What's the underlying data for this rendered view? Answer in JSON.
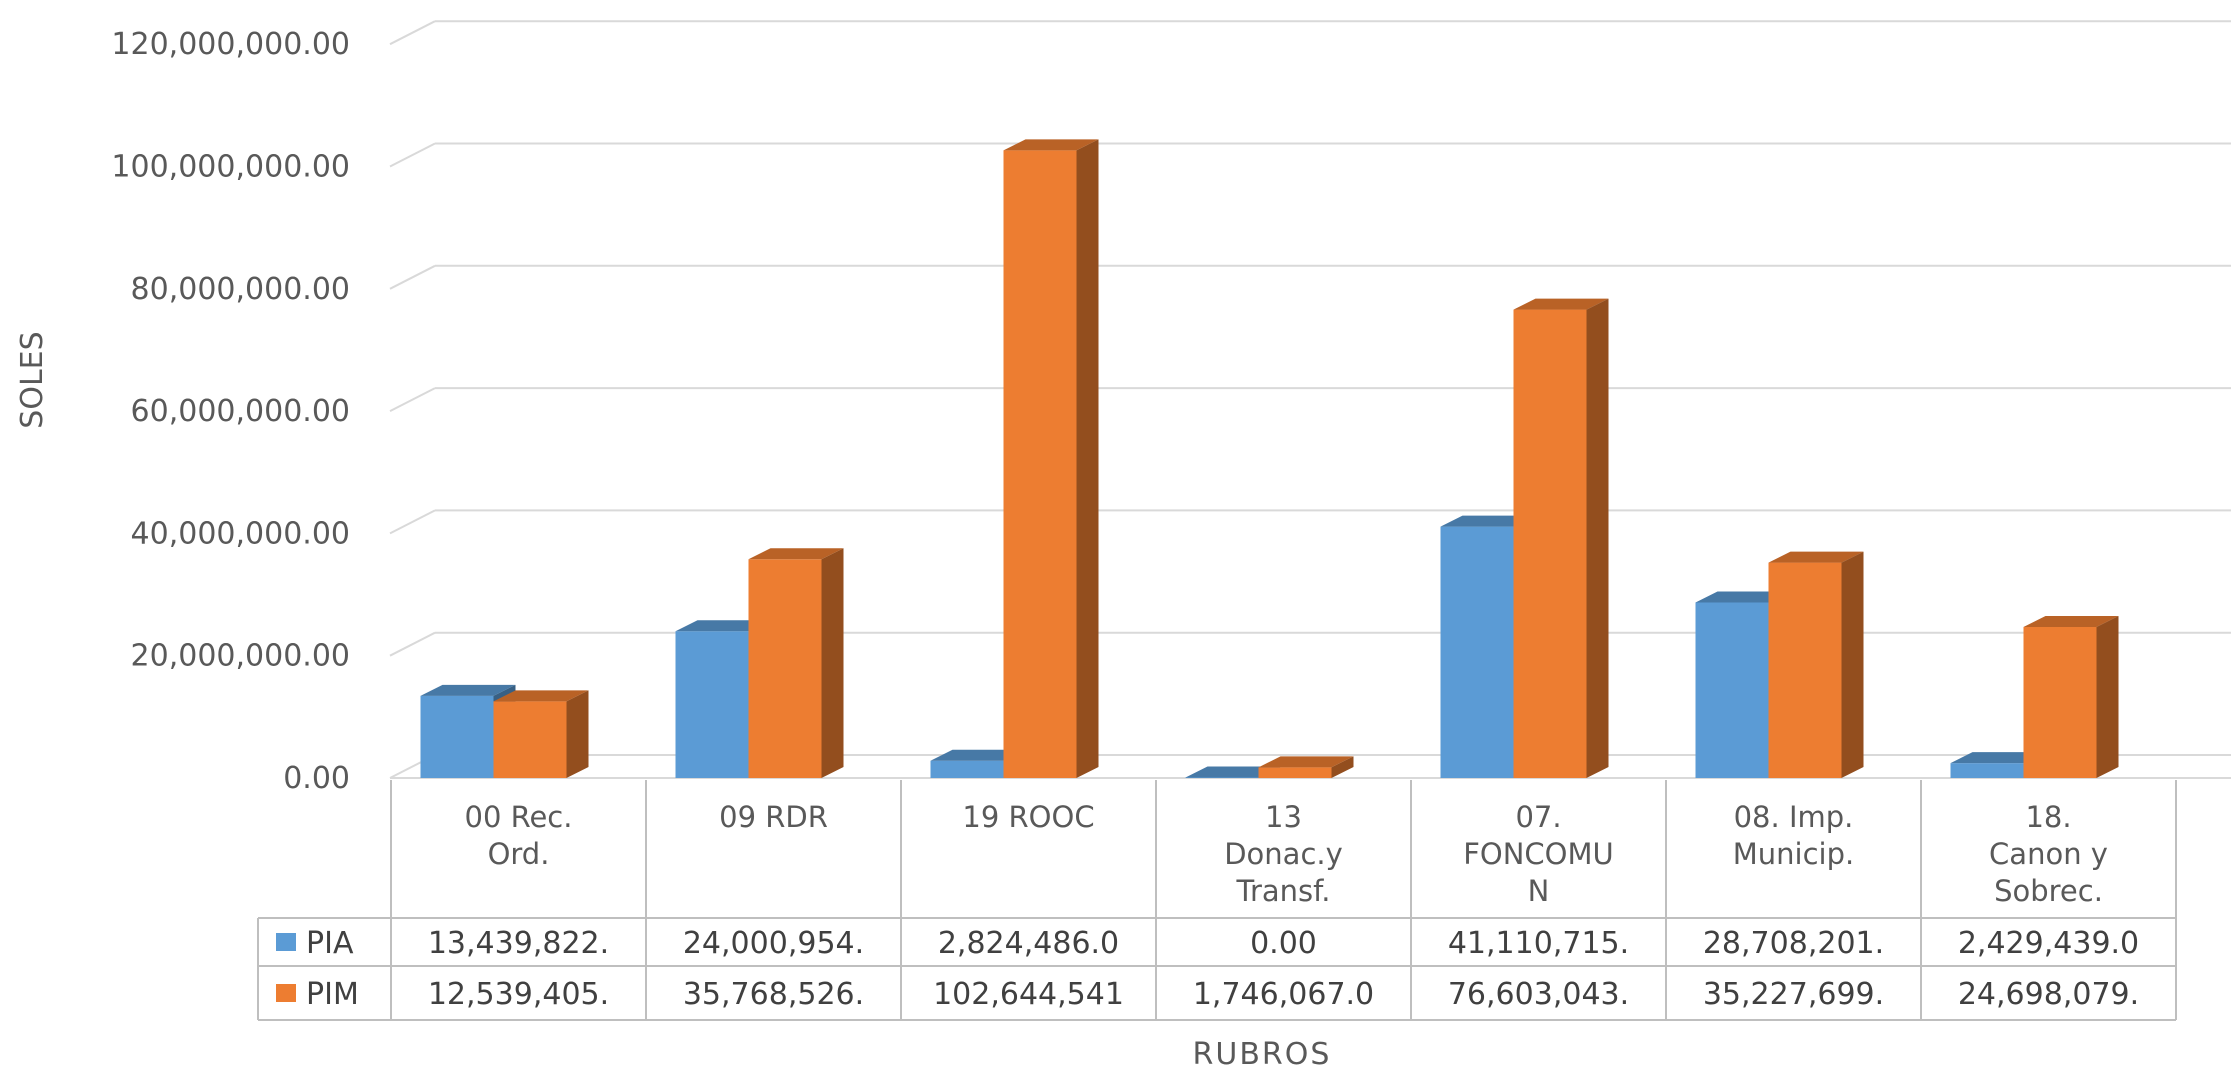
{
  "chart_data": {
    "type": "bar",
    "ylabel": "SOLES",
    "xlabel": "RUBROS",
    "ylim": [
      0,
      120000000
    ],
    "yticks": [
      "0.00",
      "20,000,000.00",
      "40,000,000.00",
      "60,000,000.00",
      "80,000,000.00",
      "100,000,000.00",
      "120,000,000.00"
    ],
    "categories": [
      [
        "00 Rec.",
        "Ord."
      ],
      [
        "09 RDR"
      ],
      [
        "19 ROOC"
      ],
      [
        "13",
        "Donac.y",
        "Transf."
      ],
      [
        "07.",
        "FONCOMU",
        "N"
      ],
      [
        "08.  Imp.",
        "Municip."
      ],
      [
        "18.",
        "Canon y",
        "Sobrec."
      ]
    ],
    "series": [
      {
        "name": "PIA",
        "color": "#5B9BD5",
        "values": [
          13439822,
          24000954,
          2824486,
          0,
          41110715,
          28708201,
          2429439
        ],
        "labels": [
          "13,439,822.",
          "24,000,954.",
          "2,824,486.0",
          "0.00",
          "41,110,715.",
          "28,708,201.",
          "2,429,439.0"
        ]
      },
      {
        "name": "PIM",
        "color": "#ED7D31",
        "values": [
          12539405,
          35768526,
          102644541,
          1746067,
          76603043,
          35227699,
          24698079
        ],
        "labels": [
          "12,539,405.",
          "35,768,526.",
          "102,644,541",
          "1,746,067.0",
          "76,603,043.",
          "35,227,699.",
          "24,698,079."
        ]
      }
    ],
    "grid": true,
    "legend": "data-table"
  }
}
